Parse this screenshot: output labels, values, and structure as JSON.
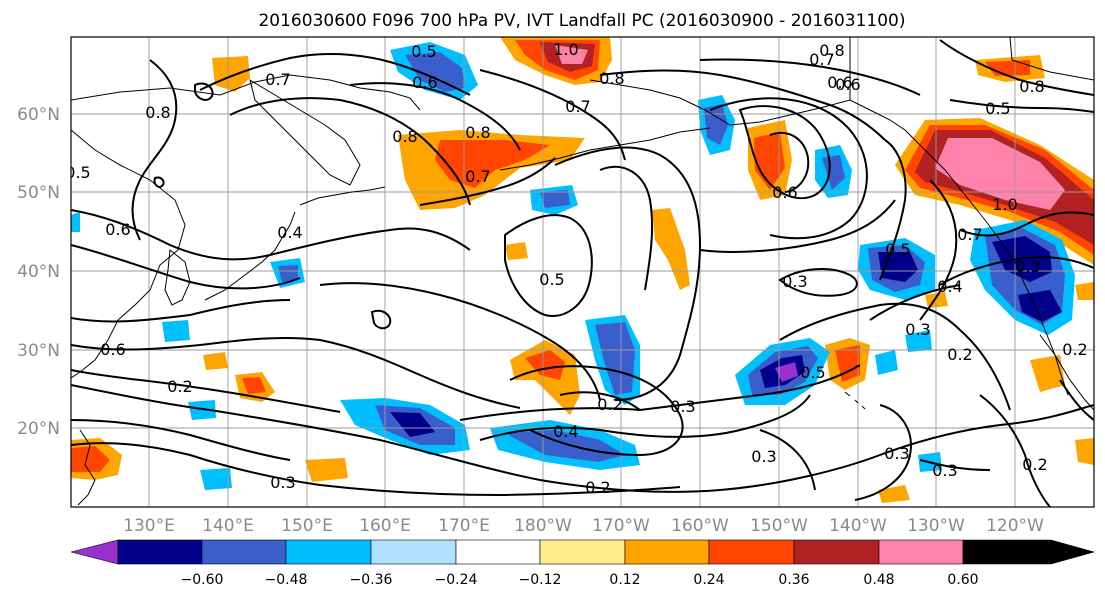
{
  "map": {
    "title": "2016030600 F096 700 hPa PV, IVT Landfall PC (2016030900 - 2016031100)",
    "lat_labels": [
      "60°N",
      "50°N",
      "40°N",
      "30°N",
      "20°N"
    ],
    "lon_labels": [
      "130°E",
      "140°E",
      "150°E",
      "160°E",
      "170°E",
      "180°W",
      "170°W",
      "160°W",
      "150°W",
      "140°W",
      "130°W",
      "120°W"
    ],
    "shading_colors": [
      "#9932cc",
      "#00008b",
      "#3a5fcd",
      "#00bfff",
      "#b0e2ff",
      "#ffffff",
      "#ffec8b",
      "#ffa500",
      "#ff4500",
      "#b22222",
      "#ff82ab"
    ],
    "colorbar_ticks": [
      "−0.60",
      "−0.48",
      "−0.36",
      "−0.24",
      "−0.12",
      "0.12",
      "0.24",
      "0.36",
      "0.48",
      "0.60"
    ],
    "contour_labels": [
      "0.5",
      "0.6",
      "0.7",
      "0.8",
      "1.0",
      "0.8",
      "0.7",
      "0.8",
      "0.7",
      "0.8",
      "0.5",
      "0.8",
      "0.6",
      "0.4",
      "0.5",
      "0.6",
      "0.5",
      "0.5",
      "0.3",
      "0.7",
      "0.4",
      "0.3",
      "0.2",
      "0.2",
      "0.2",
      "0.3",
      "0.4",
      "0.3",
      "0.5",
      "0.6",
      "0.2",
      "0.3",
      "0.3",
      "0.3",
      "0.2",
      "0.2",
      "0.3",
      "0.6",
      "0.6",
      "0.7",
      "0.8",
      "1.0"
    ]
  }
}
